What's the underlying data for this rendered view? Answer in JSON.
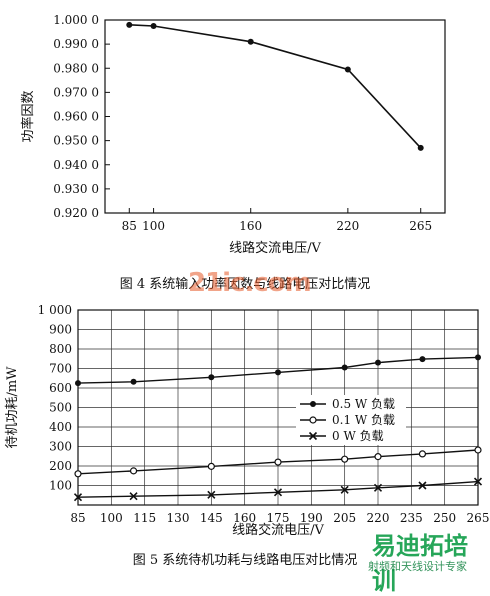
{
  "chart_data": [
    {
      "type": "line",
      "caption": "图 4   系统输入功率因数与线路电压对比情况",
      "xlabel": "线路交流电压/V",
      "ylabel": "功率因数",
      "x": [
        85,
        100,
        160,
        220,
        265
      ],
      "xticks": [
        "85",
        "100",
        "160",
        "220",
        "265"
      ],
      "xlim": [
        70,
        280
      ],
      "ylim": [
        0.92,
        1.0
      ],
      "yticks": [
        "0.920 0",
        "0.930 0",
        "0.940 0",
        "0.950 0",
        "0.960 0",
        "0.970 0",
        "0.980 0",
        "0.990 0",
        "1.000 0"
      ],
      "grid": false,
      "series": [
        {
          "values": [
            0.998,
            0.9975,
            0.991,
            0.9795,
            0.947
          ]
        }
      ]
    },
    {
      "type": "line",
      "caption": "图 5   系统待机功耗与线路电压对比情况",
      "xlabel": "线路交流电压/V",
      "ylabel": "待机功耗/mW",
      "x": [
        85,
        110,
        145,
        175,
        205,
        220,
        240,
        265
      ],
      "xticks": [
        "85",
        "100",
        "115",
        "130",
        "145",
        "160",
        "175",
        "190",
        "205",
        "220",
        "235",
        "250",
        "265"
      ],
      "xlim": [
        85,
        265
      ],
      "ylim": [
        0,
        1000
      ],
      "yticks": [
        "100",
        "200",
        "300",
        "400",
        "500",
        "600",
        "700",
        "800",
        "900",
        "1 000"
      ],
      "grid": true,
      "legend": "center-right",
      "series": [
        {
          "name": "0.5 W 负载",
          "marker": "dot",
          "values": [
            625,
            632,
            655,
            680,
            705,
            730,
            748,
            757
          ]
        },
        {
          "name": "0.1 W 负载",
          "marker": "circle",
          "values": [
            160,
            175,
            198,
            220,
            235,
            248,
            262,
            282
          ]
        },
        {
          "name": "0 W 负载",
          "marker": "cross",
          "values": [
            40,
            45,
            52,
            65,
            78,
            88,
            100,
            120
          ]
        }
      ]
    }
  ],
  "watermark": {
    "top": "21ic.com",
    "brand": "易迪拓培训",
    "sub": "射频和天线设计专家"
  }
}
